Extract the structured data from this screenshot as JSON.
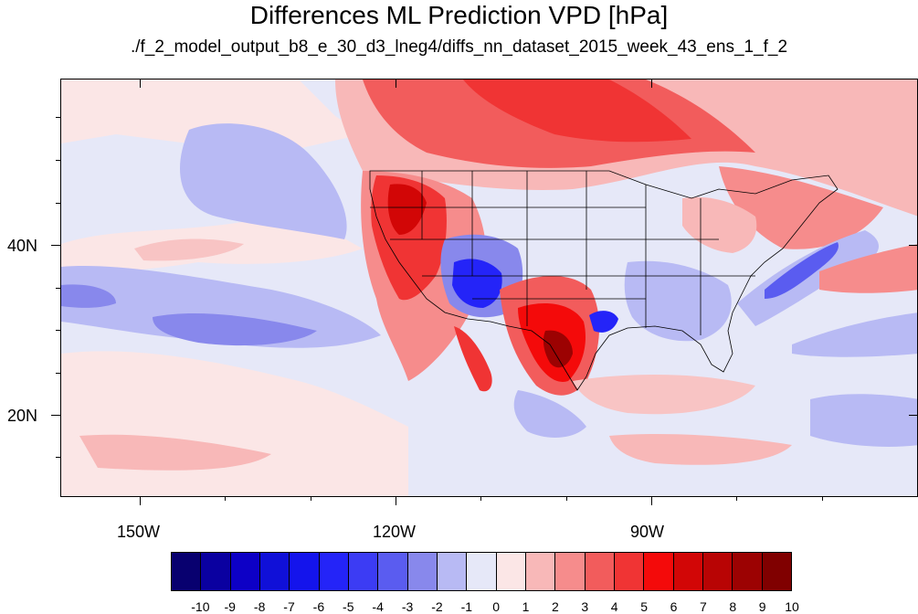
{
  "title": "Differences ML Prediction VPD [hPa]",
  "subtitle": "./f_2_model_output_b8_e_30_d3_lneg4/diffs_nn_dataset_2015_week_43_ens_1_f_2",
  "axes": {
    "x_labels": [
      "150W",
      "120W",
      "90W"
    ],
    "y_labels": [
      "40N",
      "20N"
    ]
  },
  "colorbar": {
    "labels": [
      "-10",
      "-9",
      "-8",
      "-7",
      "-6",
      "-5",
      "-4",
      "-3",
      "-2",
      "-1",
      "0",
      "1",
      "2",
      "3",
      "4",
      "5",
      "6",
      "7",
      "8",
      "9",
      "10"
    ],
    "colors": [
      "#08006f",
      "#0a00a0",
      "#0d00c6",
      "#1010d8",
      "#1414ec",
      "#2424f8",
      "#3c3cf4",
      "#5a5cf0",
      "#8888ec",
      "#b8baf4",
      "#e6e8f8",
      "#fbe6e6",
      "#f8b8b8",
      "#f68c8c",
      "#f25c5c",
      "#f03434",
      "#f40a0a",
      "#d20606",
      "#b80404",
      "#9c0202",
      "#800000"
    ]
  },
  "map": {
    "background_color": "#e8eaf8",
    "features": [
      "western-us-warm-anomaly",
      "southwest-cool-anomaly",
      "texas-warm-anomaly",
      "canada-warm-band",
      "pacific-cool-band",
      "atlantic-cool-band"
    ]
  }
}
